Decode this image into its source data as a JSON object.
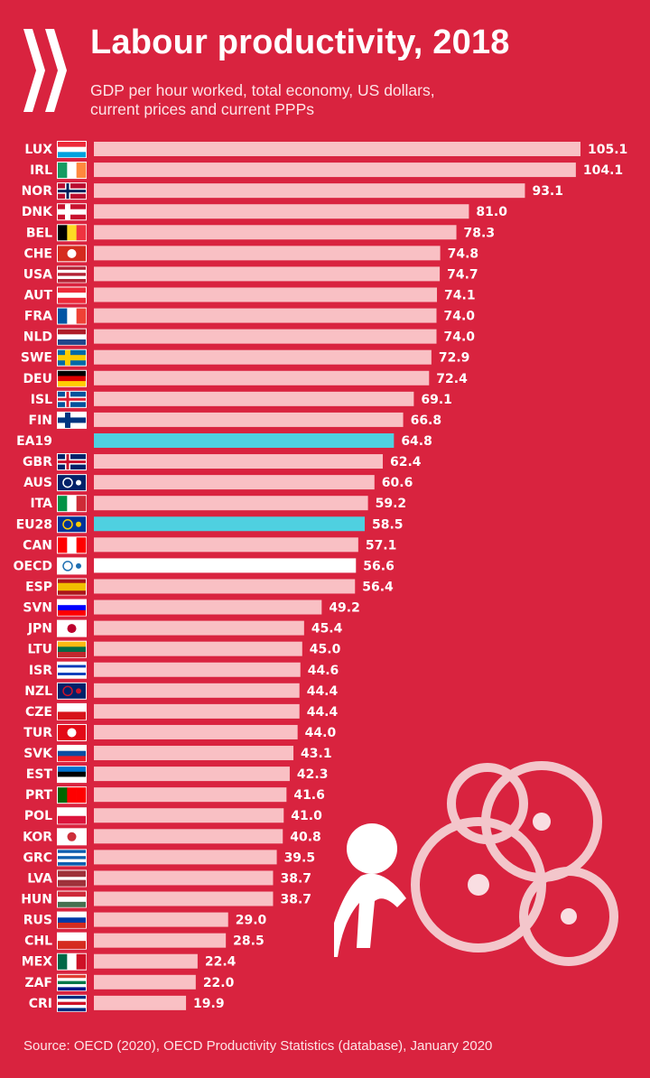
{
  "header": {
    "title": "Labour productivity, 2018",
    "subtitle_line1": "GDP per hour worked, total economy, US dollars,",
    "subtitle_line2": "current prices and current PPPs",
    "logo": "OECD"
  },
  "footer": {
    "source": "Source: OECD (2020), OECD Productivity Statistics (database), January 2020"
  },
  "colors": {
    "background": "#d9233f",
    "bar": "#f9c0c4",
    "highlight": "#4fd0e0",
    "oecd": "#ffffff"
  },
  "chart_data": {
    "type": "bar",
    "orientation": "horizontal",
    "title": "Labour productivity, 2018",
    "xlabel": "GDP per hour worked, USD, current prices and current PPPs",
    "xlim": [
      0,
      105.1
    ],
    "grid": false,
    "categories": [
      "LUX",
      "IRL",
      "NOR",
      "DNK",
      "BEL",
      "CHE",
      "USA",
      "AUT",
      "FRA",
      "NLD",
      "SWE",
      "DEU",
      "ISL",
      "FIN",
      "EA19",
      "GBR",
      "AUS",
      "ITA",
      "EU28",
      "CAN",
      "OECD",
      "ESP",
      "SVN",
      "JPN",
      "LTU",
      "ISR",
      "NZL",
      "CZE",
      "TUR",
      "SVK",
      "EST",
      "PRT",
      "POL",
      "KOR",
      "GRC",
      "LVA",
      "HUN",
      "RUS",
      "CHL",
      "MEX",
      "ZAF",
      "CRI"
    ],
    "values": [
      105.1,
      104.1,
      93.1,
      81.0,
      78.3,
      74.8,
      74.7,
      74.1,
      74.0,
      74.0,
      72.9,
      72.4,
      69.1,
      66.8,
      64.8,
      62.4,
      60.6,
      59.2,
      58.5,
      57.1,
      56.6,
      56.4,
      49.2,
      45.4,
      45.0,
      44.6,
      44.4,
      44.4,
      44.0,
      43.1,
      42.3,
      41.6,
      41.0,
      40.8,
      39.5,
      38.7,
      38.7,
      29.0,
      28.5,
      22.4,
      22.0,
      19.9
    ],
    "value_labels": [
      "105.1",
      "104.1",
      "93.1",
      "81.0",
      "78.3",
      "74.8",
      "74.7",
      "74.1",
      "74.0",
      "74.0",
      "72.9",
      "72.4",
      "69.1",
      "66.8",
      "64.8",
      "62.4",
      "60.6",
      "59.2",
      "58.5",
      "57.1",
      "56.6",
      "56.4",
      "49.2",
      "45.4",
      "45.0",
      "44.6",
      "44.4",
      "44.4",
      "44.0",
      "43.1",
      "42.3",
      "41.6",
      "41.0",
      "40.8",
      "39.5",
      "38.7",
      "38.7",
      "29.0",
      "28.5",
      "22.4",
      "22.0",
      "19.9"
    ],
    "highlighted": {
      "EA19": "highlight",
      "EU28": "highlight",
      "OECD": "oecd"
    }
  },
  "flags": {
    "LUX": [
      "h",
      "#ed2939",
      "#ffffff",
      "#00a1de"
    ],
    "IRL": [
      "v",
      "#169b62",
      "#ffffff",
      "#ff883e"
    ],
    "NOR": [
      "c",
      "#ba0c2f",
      "#ffffff",
      "#00205b"
    ],
    "DNK": [
      "c",
      "#c8102e",
      "#ffffff",
      "#ffffff"
    ],
    "BEL": [
      "v",
      "#000000",
      "#fdda24",
      "#ef3340"
    ],
    "CHE": [
      "p",
      "#d52b1e",
      "#ffffff"
    ],
    "USA": [
      "h",
      "#b22234",
      "#ffffff",
      "#b22234",
      "#ffffff",
      "#b22234"
    ],
    "AUT": [
      "h",
      "#ed2939",
      "#ffffff",
      "#ed2939"
    ],
    "FRA": [
      "v",
      "#0055a4",
      "#ffffff",
      "#ef4135"
    ],
    "NLD": [
      "h",
      "#ae1c28",
      "#ffffff",
      "#21468b"
    ],
    "SWE": [
      "c",
      "#006aa7",
      "#fecc00",
      "#fecc00"
    ],
    "DEU": [
      "h",
      "#000000",
      "#dd0000",
      "#ffce00"
    ],
    "ISL": [
      "c",
      "#02529c",
      "#ffffff",
      "#dc1e35"
    ],
    "FIN": [
      "c",
      "#ffffff",
      "#003580",
      "#003580"
    ],
    "GBR": [
      "c",
      "#012169",
      "#ffffff",
      "#c8102e"
    ],
    "AUS": [
      "s",
      "#012169",
      "#ffffff"
    ],
    "ITA": [
      "v",
      "#009246",
      "#ffffff",
      "#ce2b37"
    ],
    "EU28": [
      "s",
      "#003399",
      "#ffcc00"
    ],
    "CAN": [
      "v",
      "#ff0000",
      "#ffffff",
      "#ff0000"
    ],
    "OECD": [
      "s",
      "#ffffff",
      "#1f6fb2"
    ],
    "ESP": [
      "h",
      "#aa151b",
      "#f1bf00",
      "#f1bf00",
      "#aa151b"
    ],
    "SVN": [
      "h",
      "#ffffff",
      "#0000ff",
      "#ff0000"
    ],
    "JPN": [
      "p",
      "#ffffff",
      "#bc002d"
    ],
    "LTU": [
      "h",
      "#fdb913",
      "#006a44",
      "#c1272d"
    ],
    "ISR": [
      "h",
      "#ffffff",
      "#0038b8",
      "#ffffff",
      "#ffffff",
      "#0038b8",
      "#ffffff"
    ],
    "NZL": [
      "s",
      "#012169",
      "#cc142b"
    ],
    "CZE": [
      "h",
      "#ffffff",
      "#d7141a"
    ],
    "TUR": [
      "p",
      "#e30a17",
      "#ffffff"
    ],
    "SVK": [
      "h",
      "#ffffff",
      "#0b4ea2",
      "#ee1c25"
    ],
    "EST": [
      "h",
      "#0072ce",
      "#000000",
      "#ffffff"
    ],
    "PRT": [
      "v",
      "#006600",
      "#ff0000",
      "#ff0000"
    ],
    "POL": [
      "h",
      "#ffffff",
      "#dc143c"
    ],
    "KOR": [
      "p",
      "#ffffff",
      "#cd2e3a"
    ],
    "GRC": [
      "h",
      "#0d5eaf",
      "#ffffff",
      "#0d5eaf",
      "#ffffff",
      "#0d5eaf"
    ],
    "LVA": [
      "h",
      "#9e3039",
      "#9e3039",
      "#ffffff",
      "#9e3039",
      "#9e3039"
    ],
    "HUN": [
      "h",
      "#ce2939",
      "#ffffff",
      "#477050"
    ],
    "RUS": [
      "h",
      "#ffffff",
      "#0039a6",
      "#d52b1e"
    ],
    "CHL": [
      "h",
      "#ffffff",
      "#d52b1e"
    ],
    "MEX": [
      "v",
      "#006847",
      "#ffffff",
      "#ce1126"
    ],
    "ZAF": [
      "h",
      "#e03c31",
      "#ffffff",
      "#007749",
      "#ffffff",
      "#001489"
    ],
    "CRI": [
      "h",
      "#002b7f",
      "#ffffff",
      "#ce1126",
      "#ffffff",
      "#002b7f"
    ]
  }
}
